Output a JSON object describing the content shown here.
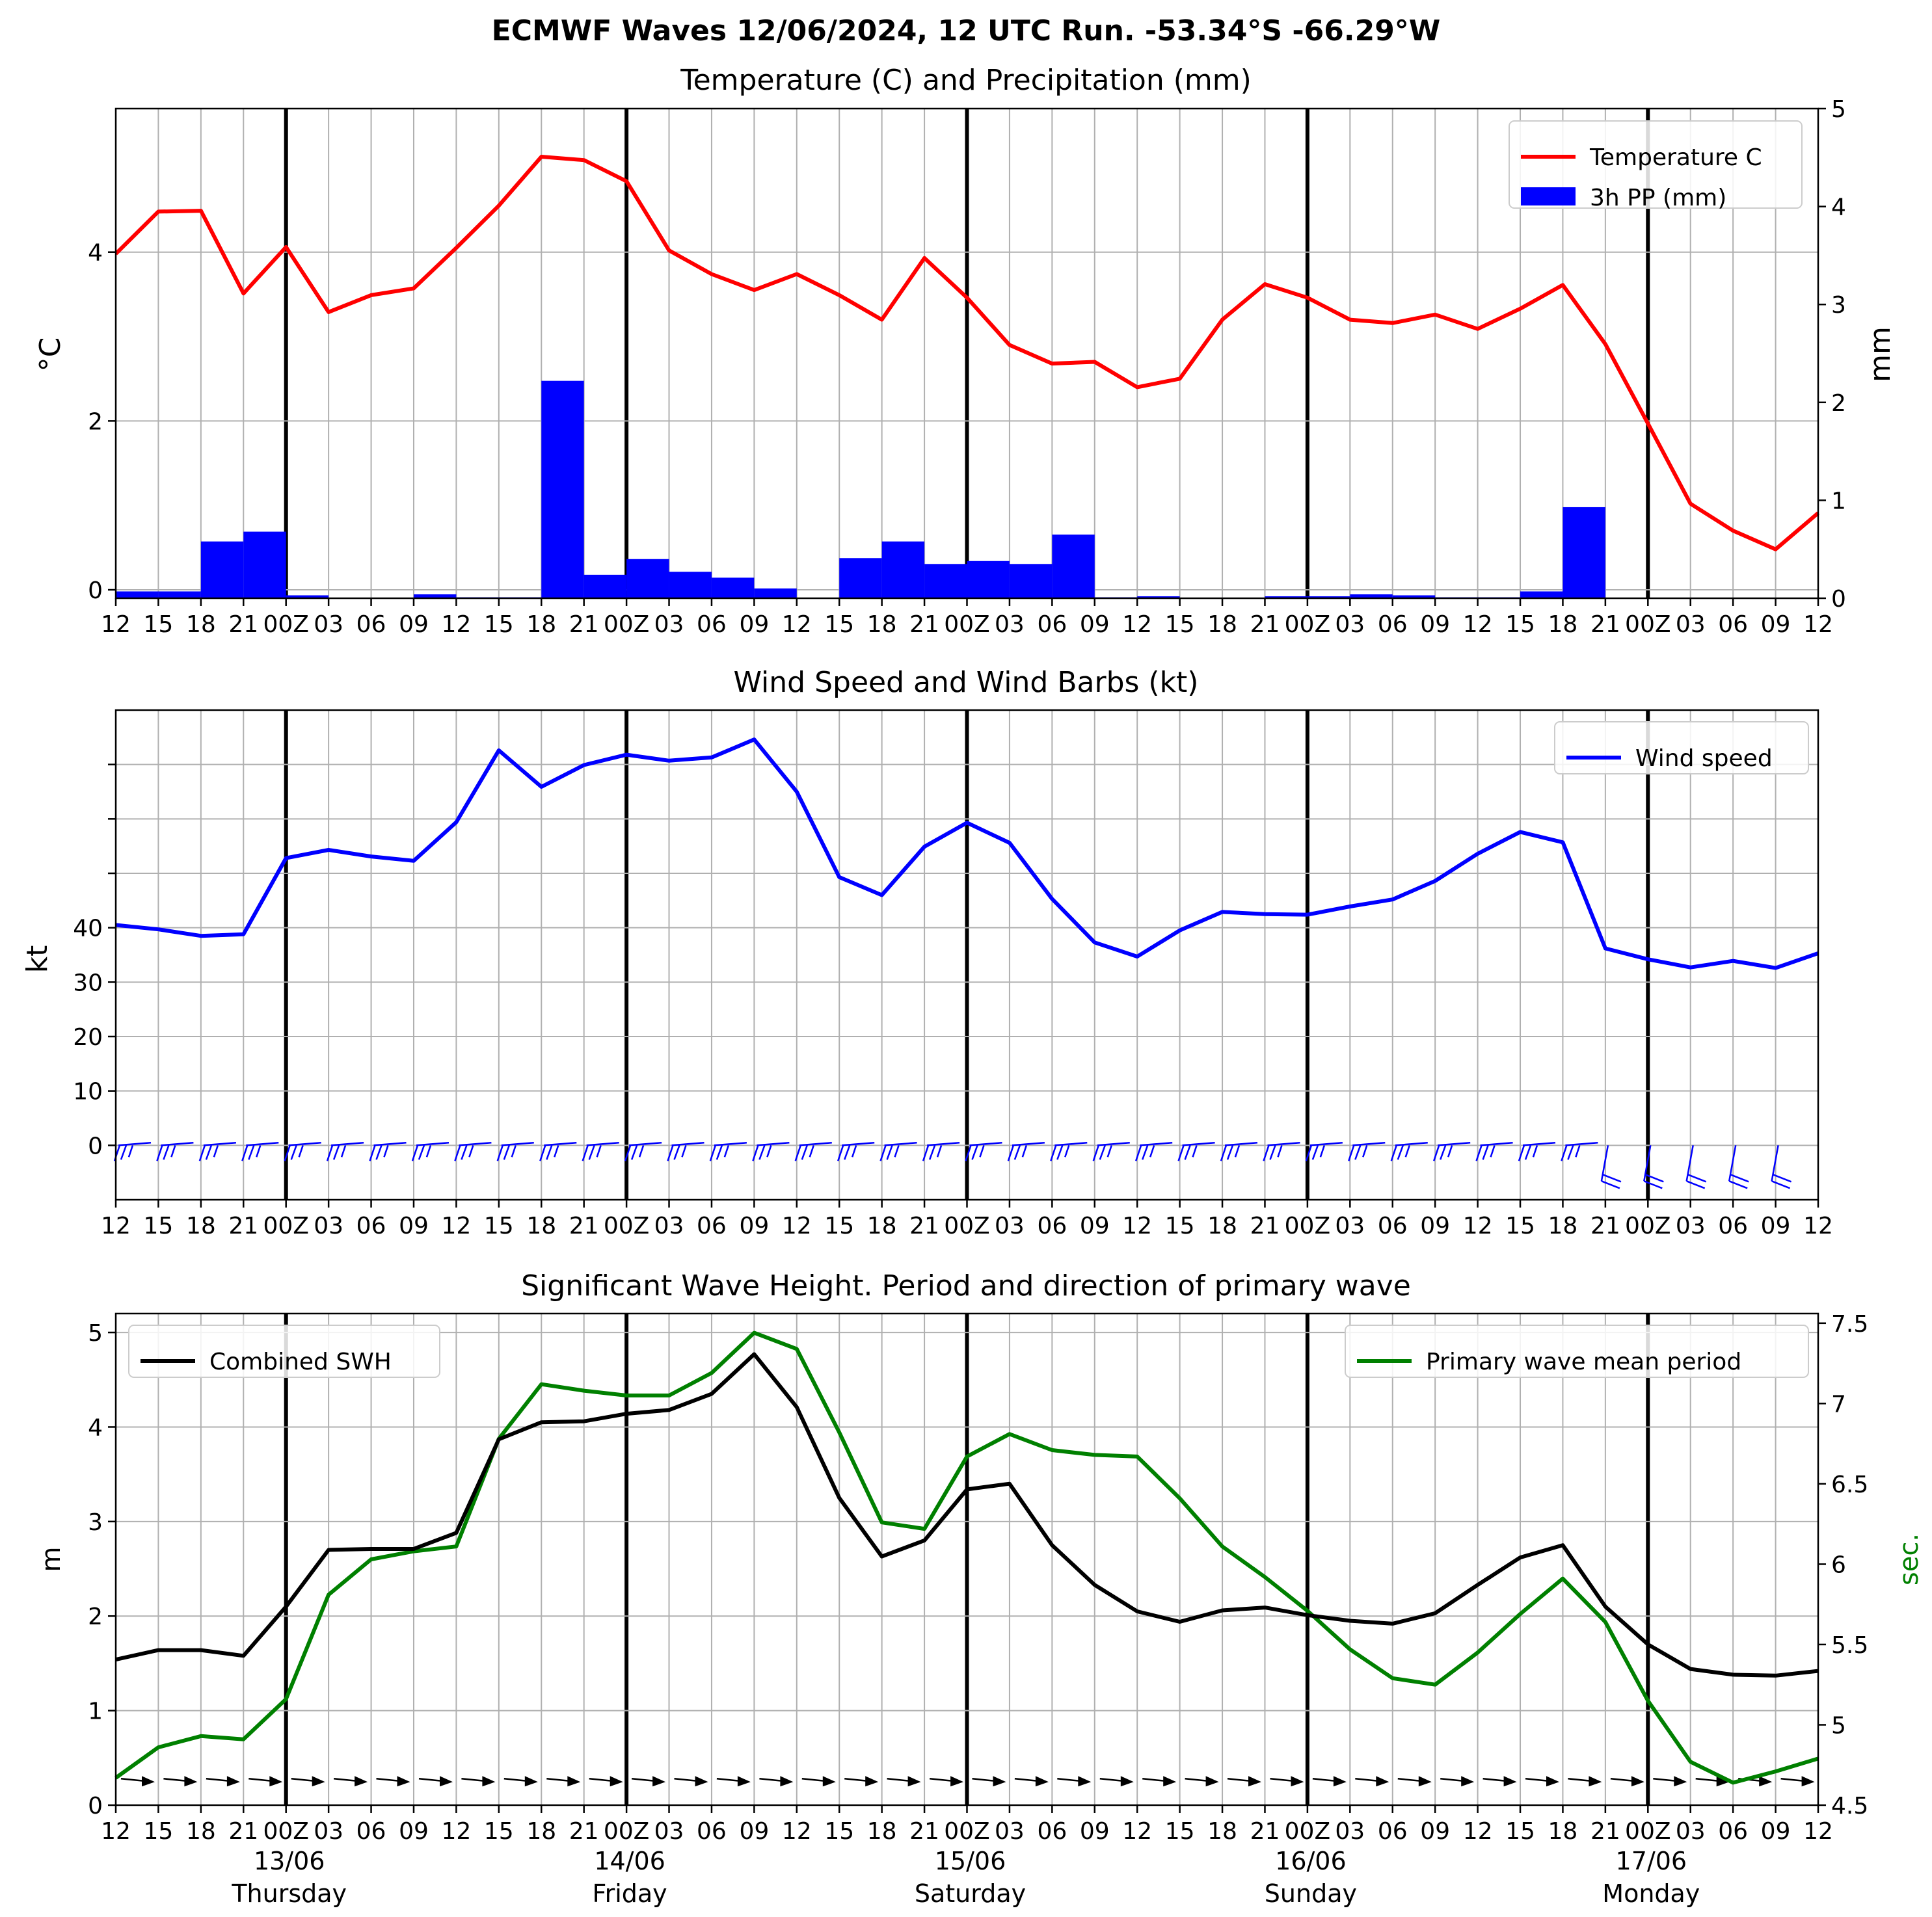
{
  "title": "ECMWF Waves 12/06/2024, 12 UTC Run. -53.34°S -66.29°W",
  "time_ticks": [
    "12",
    "15",
    "18",
    "21",
    "00Z",
    "03",
    "06",
    "09",
    "12",
    "15",
    "18",
    "21",
    "00Z",
    "03",
    "06",
    "09",
    "12",
    "15",
    "18",
    "21",
    "00Z",
    "03",
    "06",
    "09",
    "12",
    "15",
    "18",
    "21",
    "00Z",
    "03",
    "06",
    "09",
    "12",
    "15",
    "18",
    "21",
    "00Z",
    "03",
    "06",
    "09",
    "12"
  ],
  "bottom_time_ticks": [
    "12",
    "15",
    "18",
    "21",
    "00Z",
    "03",
    "06",
    "09",
    "12",
    "15",
    "18",
    "21",
    "00Z",
    "03",
    "06",
    "09",
    "12",
    "15",
    "18",
    "21",
    "00Z",
    "03",
    "06",
    "09",
    "12",
    "15",
    "18",
    "21",
    "00Z",
    "03",
    "06",
    "09",
    "12",
    "15",
    "18",
    "21",
    "00Z",
    "03",
    "06",
    "09",
    "12"
  ],
  "day_labels": [
    {
      "date": "13/06",
      "day": "Thursday",
      "index": 4
    },
    {
      "date": "14/06",
      "day": "Friday",
      "index": 12
    },
    {
      "date": "15/06",
      "day": "Saturday",
      "index": 20
    },
    {
      "date": "16/06",
      "day": "Sunday",
      "index": 28
    },
    {
      "date": "17/06",
      "day": "Monday",
      "index": 36
    }
  ],
  "colors": {
    "temperature": "#ff0000",
    "precip": "#0000ff",
    "wind": "#0000ff",
    "swh": "#000000",
    "period": "#008000",
    "grid": "#b0b0b0"
  },
  "chart_data": [
    {
      "type": "line",
      "title": "Temperature (C) and Precipitation (mm)",
      "ylabel": "°C",
      "y2label": "mm",
      "ylim": [
        -0.1,
        5.7
      ],
      "y2lim": [
        0,
        5
      ],
      "yticks": [
        0,
        2,
        4
      ],
      "y2ticks": [
        0,
        1,
        2,
        3,
        4,
        5
      ],
      "grid": true,
      "legend_position": "top-right",
      "series": [
        {
          "name": "Temperature C",
          "axis": "left",
          "kind": "line",
          "values": [
            3.98,
            4.48,
            4.49,
            3.51,
            4.06,
            3.29,
            3.49,
            3.57,
            4.05,
            4.55,
            5.13,
            5.09,
            4.84,
            4.02,
            3.74,
            3.55,
            3.74,
            3.49,
            3.2,
            3.93,
            3.46,
            2.9,
            2.68,
            2.7,
            2.4,
            2.5,
            3.2,
            3.62,
            3.46,
            3.2,
            3.16,
            3.26,
            3.09,
            3.33,
            3.61,
            2.91,
            1.97,
            1.02,
            0.7,
            0.48,
            0.91
          ]
        },
        {
          "name": "3h PP (mm)",
          "axis": "right",
          "kind": "bar",
          "values": [
            0.07,
            0.07,
            0.58,
            0.68,
            0.03,
            0.0,
            0.0,
            0.04,
            0.01,
            0.01,
            2.22,
            0.24,
            0.4,
            0.27,
            0.21,
            0.1,
            0.0,
            0.41,
            0.58,
            0.35,
            0.38,
            0.35,
            0.65,
            0.01,
            0.02,
            0.0,
            0.0,
            0.02,
            0.02,
            0.04,
            0.03,
            0.01,
            0.01,
            0.07,
            0.93,
            0.0,
            0.0,
            0.0,
            0.0,
            0.0
          ]
        }
      ]
    },
    {
      "type": "line",
      "title": "Wind Speed and Wind Barbs (kt)",
      "ylabel": "kt",
      "ylim": [
        -10,
        80
      ],
      "yticks": [
        0,
        10,
        20,
        30,
        40
      ],
      "grid": true,
      "legend_position": "top-right",
      "series": [
        {
          "name": "Wind speed",
          "values": [
            40.5,
            39.7,
            38.5,
            38.8,
            52.8,
            54.3,
            53.1,
            52.3,
            59.4,
            72.6,
            65.9,
            69.9,
            71.8,
            70.7,
            71.3,
            74.6,
            65.0,
            49.3,
            46.0,
            54.9,
            59.3,
            55.6,
            45.3,
            37.3,
            34.7,
            39.5,
            42.9,
            42.5,
            42.4,
            43.9,
            45.2,
            48.6,
            53.6,
            57.6,
            55.7,
            36.2,
            34.2,
            32.7,
            33.9,
            32.6,
            35.3
          ]
        }
      ],
      "barbs_row": 0
    },
    {
      "type": "line",
      "title": "Significant Wave Height. Period and direction of primary wave",
      "ylabel": "m",
      "y2label": "sec.",
      "ylim": [
        0,
        5.2
      ],
      "y2lim": [
        4.5,
        7.56
      ],
      "yticks": [
        0,
        1,
        2,
        3,
        4,
        5
      ],
      "y2ticks": [
        4.5,
        5.0,
        5.5,
        6.0,
        6.5,
        7.0,
        7.5
      ],
      "grid": true,
      "series": [
        {
          "name": "Combined SWH",
          "axis": "left",
          "legend_position": "top-left",
          "values": [
            1.54,
            1.64,
            1.64,
            1.58,
            2.1,
            2.7,
            2.71,
            2.71,
            2.88,
            3.87,
            4.05,
            4.06,
            4.14,
            4.18,
            4.35,
            4.77,
            4.21,
            3.25,
            2.63,
            2.8,
            3.34,
            3.4,
            2.75,
            2.33,
            2.05,
            1.94,
            2.06,
            2.09,
            2.01,
            1.95,
            1.92,
            2.03,
            2.33,
            2.62,
            2.75,
            2.1,
            1.7,
            1.44,
            1.38,
            1.37,
            1.42
          ]
        },
        {
          "name": "Primary wave mean period",
          "axis": "right",
          "legend_position": "top-right",
          "values": [
            4.67,
            4.86,
            4.93,
            4.91,
            5.16,
            5.81,
            6.03,
            6.08,
            6.11,
            6.78,
            7.12,
            7.08,
            7.05,
            7.05,
            7.19,
            7.44,
            7.34,
            6.82,
            6.26,
            6.22,
            6.67,
            6.81,
            6.71,
            6.68,
            6.67,
            6.41,
            6.11,
            5.92,
            5.71,
            5.47,
            5.29,
            5.25,
            5.45,
            5.69,
            5.91,
            5.64,
            5.15,
            4.77,
            4.64,
            4.71,
            4.79
          ]
        }
      ]
    }
  ]
}
